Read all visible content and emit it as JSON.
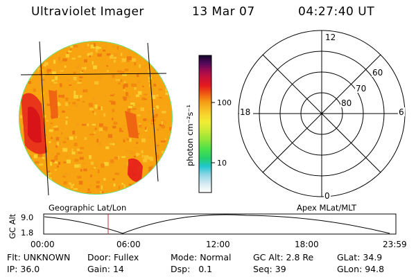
{
  "header": {
    "title": "Ultraviolet Imager",
    "date": "13 Mar 07",
    "time": "04:27:40 UT"
  },
  "colorbar": {
    "unit_label": "photon cm⁻²s⁻¹",
    "ticks": [
      "100",
      "10"
    ]
  },
  "polar_plot": {
    "hour_labels": {
      "top": "12",
      "left": "18",
      "right": "6",
      "bottom": "0"
    },
    "lat_labels": [
      "60",
      "70",
      "80"
    ]
  },
  "timeline": {
    "y_axis_label": "GC Alt",
    "y_ticks": [
      "9.0",
      "1.8"
    ],
    "left_caption": "Geographic Lat/Lon",
    "right_caption": "Apex MLat/MLT",
    "x_ticks": [
      "00:00",
      "06:00",
      "12:00",
      "18:00",
      "23:59"
    ]
  },
  "info_rows": [
    [
      {
        "label": "Flt:",
        "value": "UNKNOWN"
      },
      {
        "label": "Door:",
        "value": "Fullex"
      },
      {
        "label": "Mode:",
        "value": "Normal"
      },
      {
        "label": "GC Alt:",
        "value": "2.8 Re"
      },
      {
        "label": "GLat:",
        "value": "34.9"
      }
    ],
    [
      {
        "label": "IP:",
        "value": "36.0"
      },
      {
        "label": "Gain:",
        "value": "14"
      },
      {
        "label": "Dsp:",
        "value": "0.1"
      },
      {
        "label": "Seq:",
        "value": "39"
      },
      {
        "label": "GLon:",
        "value": "94.8"
      }
    ]
  ],
  "colors": {
    "disk_base": "#f7a410",
    "disk_hot": "#e0201c",
    "disk_edge": "#6ee07a",
    "timeline_marker": "#c0303a"
  }
}
